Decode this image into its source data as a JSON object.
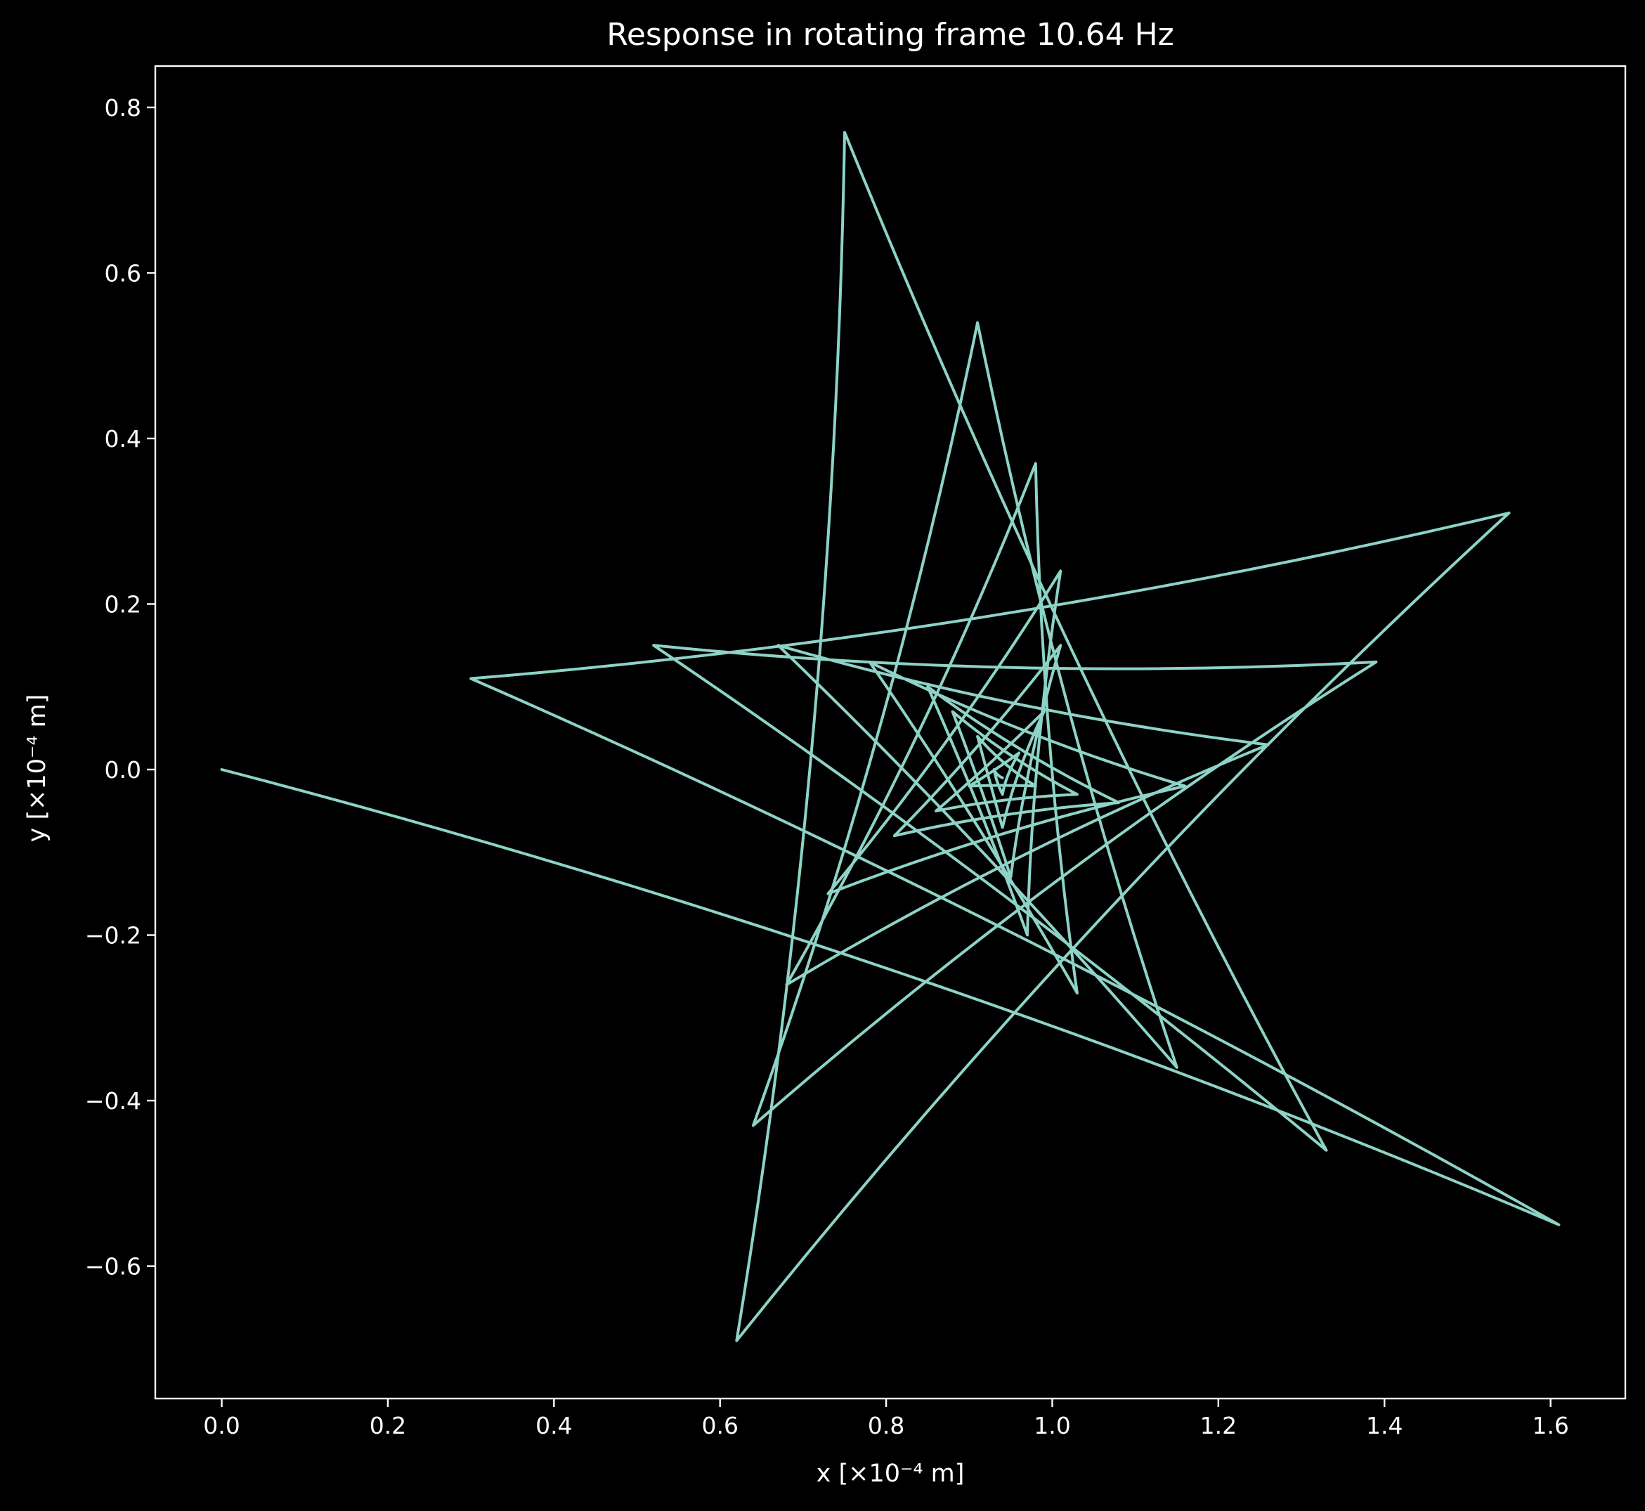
{
  "chart_data": {
    "type": "line",
    "title": "Response in rotating frame 10.64 Hz",
    "xlabel": "x [×10⁻⁴ m]",
    "ylabel": "y [×10⁻⁴ m]",
    "xlim": [
      -0.08,
      1.69
    ],
    "ylim": [
      -0.76,
      0.85
    ],
    "xticks": [
      0.0,
      0.2,
      0.4,
      0.6,
      0.8,
      1.0,
      1.2,
      1.4,
      1.6
    ],
    "xtick_labels": [
      "0.0",
      "0.2",
      "0.4",
      "0.6",
      "0.8",
      "1.0",
      "1.2",
      "1.4",
      "1.6"
    ],
    "yticks": [
      0.8,
      0.6,
      0.4,
      0.2,
      0.0,
      -0.2,
      -0.4,
      -0.6
    ],
    "ytick_labels": [
      "0.8",
      "0.6",
      "0.4",
      "0.2",
      "0.0",
      "−0.2",
      "−0.4",
      "−0.6"
    ],
    "grid": false,
    "background_color": "#000000",
    "foreground_color": "#ffffff",
    "line_color": "#8dd3c7",
    "series": [
      {
        "name": "response",
        "cusps": [
          [
            0.0,
            0.0
          ],
          [
            1.61,
            -0.55
          ],
          [
            0.3,
            0.11
          ],
          [
            1.55,
            0.31
          ],
          [
            0.62,
            -0.69
          ],
          [
            0.75,
            0.77
          ],
          [
            1.33,
            -0.46
          ],
          [
            0.52,
            0.15
          ],
          [
            1.39,
            0.13
          ],
          [
            0.64,
            -0.43
          ],
          [
            0.91,
            0.54
          ],
          [
            1.15,
            -0.36
          ],
          [
            0.67,
            0.15
          ],
          [
            1.26,
            0.03
          ],
          [
            0.68,
            -0.26
          ],
          [
            0.98,
            0.37
          ],
          [
            1.03,
            -0.27
          ],
          [
            0.78,
            0.13
          ],
          [
            1.16,
            -0.02
          ],
          [
            0.73,
            -0.15
          ],
          [
            1.01,
            0.24
          ],
          [
            0.97,
            -0.2
          ],
          [
            0.85,
            0.1
          ],
          [
            1.08,
            -0.04
          ],
          [
            0.81,
            -0.08
          ],
          [
            1.01,
            0.15
          ],
          [
            0.95,
            -0.13
          ],
          [
            0.88,
            0.07
          ],
          [
            1.03,
            -0.03
          ],
          [
            0.86,
            -0.05
          ],
          [
            0.99,
            0.07
          ],
          [
            0.94,
            -0.07
          ],
          [
            0.91,
            0.04
          ],
          [
            0.98,
            -0.02
          ],
          [
            0.9,
            -0.02
          ],
          [
            0.96,
            0.02
          ],
          [
            0.94,
            -0.03
          ],
          [
            0.93,
            0.0
          ],
          [
            0.94,
            -0.01
          ]
        ]
      }
    ]
  }
}
